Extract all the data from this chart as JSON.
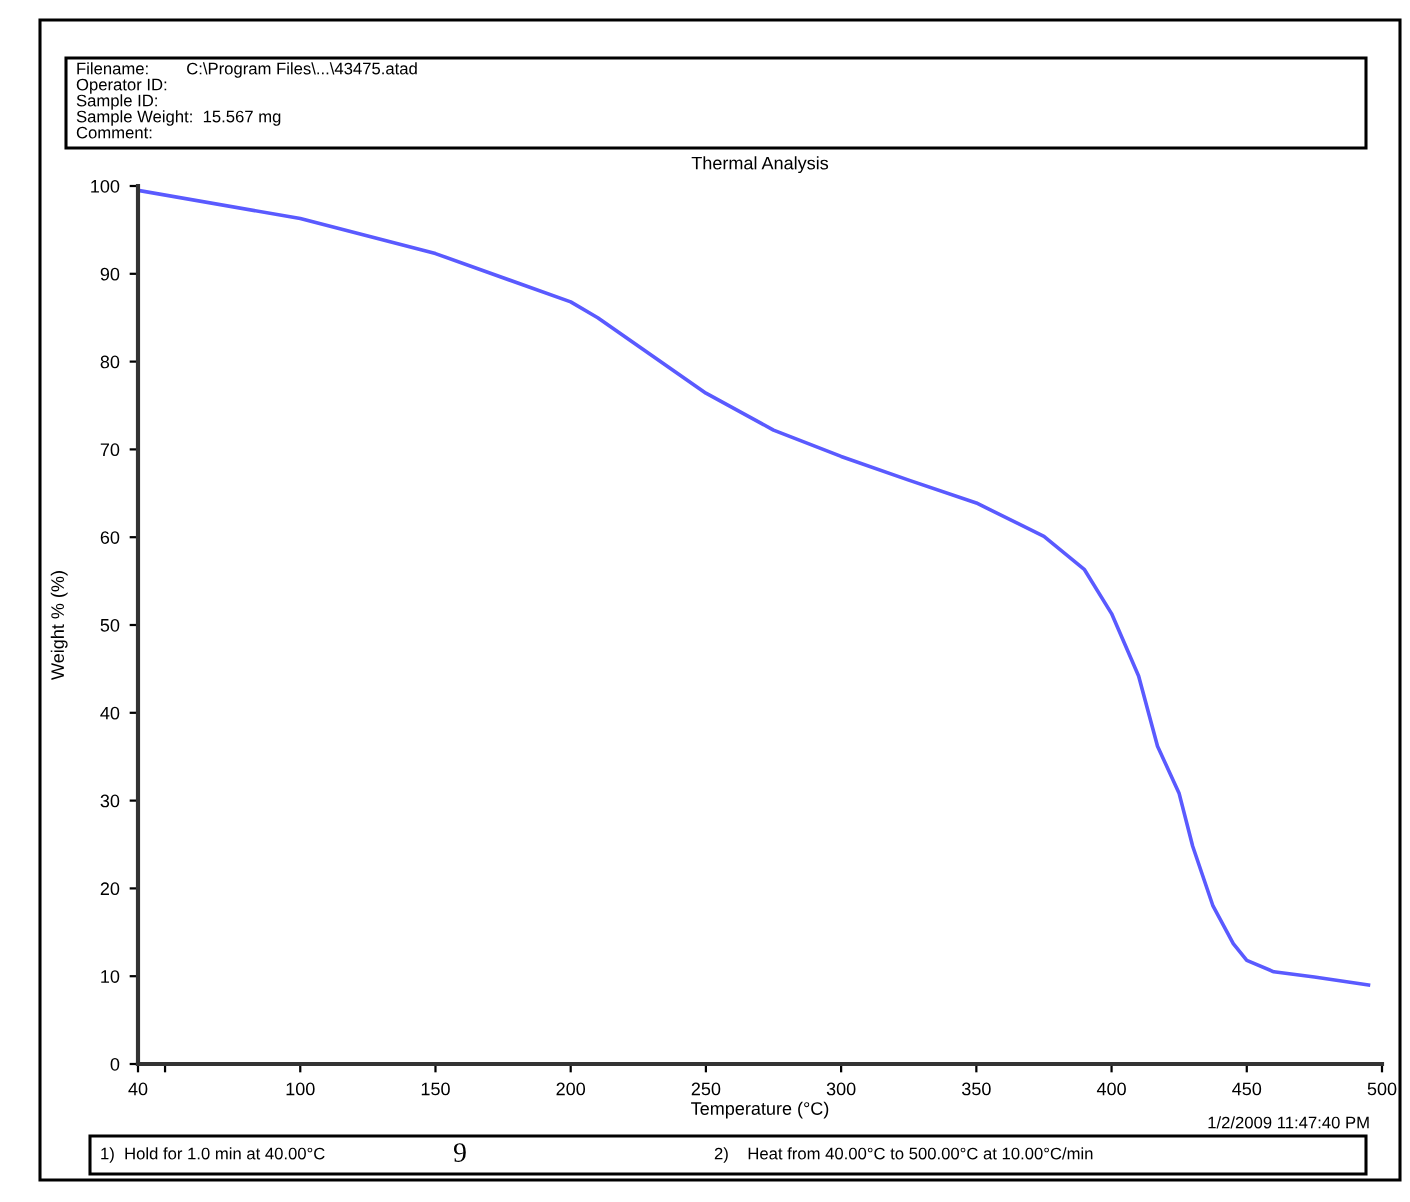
{
  "chart_data": {
    "type": "line",
    "title": "Thermal Analysis",
    "xlabel": "Temperature (°C)",
    "ylabel": "Weight % (%)",
    "x": [
      40,
      100,
      150,
      200,
      210,
      250,
      275,
      300,
      325,
      350,
      375,
      390,
      400,
      410,
      417,
      425,
      430,
      437.5,
      445,
      450,
      460,
      475,
      495
    ],
    "series": [
      {
        "color": "#5a5aff",
        "values": [
          99.5,
          96.3,
          92.3,
          86.8,
          85.0,
          76.4,
          72.2,
          69.2,
          66.5,
          63.9,
          60.1,
          56.3,
          51.3,
          44.2,
          36.2,
          30.8,
          24.8,
          18.0,
          13.7,
          11.8,
          10.5,
          9.9,
          9.0
        ]
      }
    ],
    "xlim": [
      40,
      500
    ],
    "ylim": [
      0,
      100
    ],
    "xticks": [
      40,
      {
        "value": 50,
        "label": null
      },
      100,
      150,
      200,
      250,
      300,
      350,
      400,
      450,
      500
    ],
    "yticks": [
      0,
      10,
      20,
      30,
      40,
      50,
      60,
      70,
      80,
      90,
      100
    ],
    "grid": false,
    "legend": false,
    "marker": "none",
    "line_style": "solid",
    "annotations": [
      "Filename:        C:\\Program Files\\...\\43475.atad",
      "Operator ID:",
      "Sample ID:",
      "Sample Weight:  15.567 mg",
      "Comment:",
      "1/2/2009 11:47:40 PM",
      "1)  Hold for 1.0 min at 40.00°C",
      "2)    Heat from 40.00°C to 500.00°C at 10.00°C/min",
      "9"
    ]
  }
}
